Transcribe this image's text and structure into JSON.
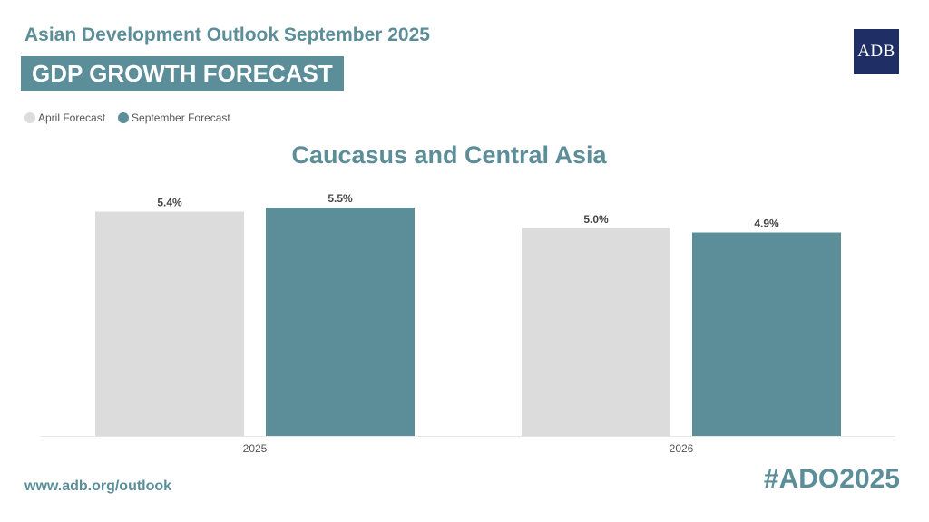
{
  "header": {
    "supertitle": "Asian Development Outlook September 2025",
    "banner": "GDP GROWTH FORECAST",
    "logo_text": "ADB"
  },
  "footer": {
    "url": "www.adb.org/outlook",
    "hashtag": "#ADO2025"
  },
  "colors": {
    "april": "#dcdcdc",
    "september": "#5b8e99"
  },
  "chart_data": {
    "type": "bar",
    "title": "Caucasus and Central Asia",
    "categories": [
      "2025",
      "2026"
    ],
    "series": [
      {
        "name": "April Forecast",
        "values": [
          5.4,
          5.0
        ],
        "labels": [
          "5.4%",
          "5.0%"
        ]
      },
      {
        "name": "September Forecast",
        "values": [
          5.5,
          4.9
        ],
        "labels": [
          "5.5%",
          "4.9%"
        ]
      }
    ],
    "ylim": [
      0,
      5.5
    ],
    "grid": false,
    "legend": "top-left"
  }
}
